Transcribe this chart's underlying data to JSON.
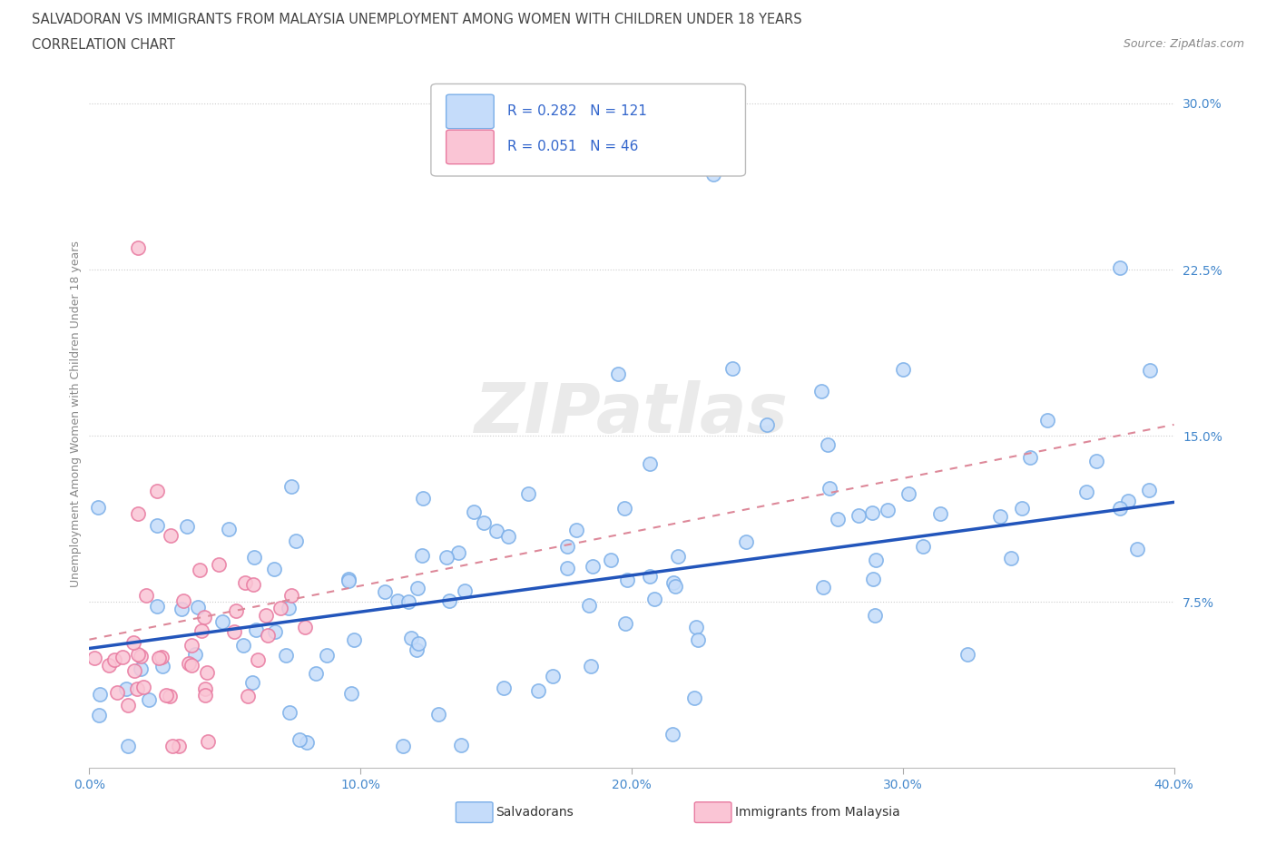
{
  "title_line1": "SALVADORAN VS IMMIGRANTS FROM MALAYSIA UNEMPLOYMENT AMONG WOMEN WITH CHILDREN UNDER 18 YEARS",
  "title_line2": "CORRELATION CHART",
  "source_text": "Source: ZipAtlas.com",
  "ylabel": "Unemployment Among Women with Children Under 18 years",
  "xlim": [
    0.0,
    0.4
  ],
  "ylim": [
    0.0,
    0.32
  ],
  "xtick_labels": [
    "0.0%",
    "10.0%",
    "20.0%",
    "30.0%",
    "40.0%"
  ],
  "xtick_values": [
    0.0,
    0.1,
    0.2,
    0.3,
    0.4
  ],
  "ytick_labels": [
    "7.5%",
    "15.0%",
    "22.5%",
    "30.0%"
  ],
  "ytick_values": [
    0.075,
    0.15,
    0.225,
    0.3
  ],
  "blue_face_color": "#C5DCFA",
  "blue_edge_color": "#7AAEE8",
  "pink_face_color": "#FAC5D5",
  "pink_edge_color": "#E87AA0",
  "blue_line_color": "#2255BB",
  "pink_line_color": "#DD8899",
  "R_blue": 0.282,
  "N_blue": 121,
  "R_pink": 0.051,
  "N_pink": 46,
  "watermark": "ZIPatlas",
  "legend_Salvadorans": "Salvadorans",
  "legend_Malaysia": "Immigrants from Malaysia",
  "title_color": "#444444",
  "tick_color": "#4488CC",
  "ylabel_color": "#888888",
  "source_color": "#888888"
}
